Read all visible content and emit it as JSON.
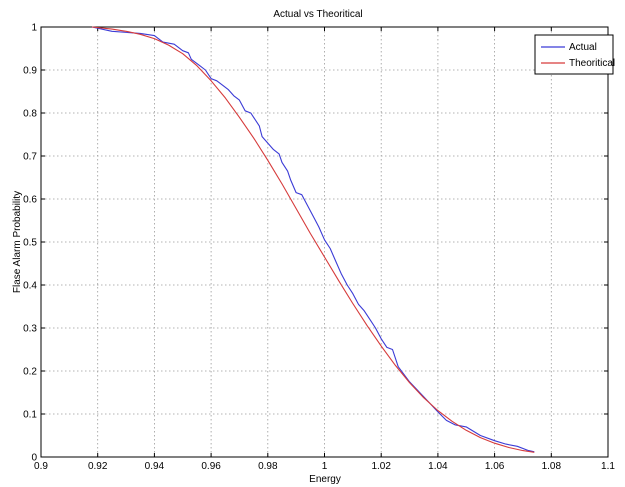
{
  "chart_data": {
    "type": "line",
    "title": "Actual vs Theoritical",
    "xlabel": "Energy",
    "ylabel": "Flase Alarm Probability",
    "xlim": [
      0.9,
      1.1
    ],
    "ylim": [
      0,
      1
    ],
    "xticks": [
      "0.9",
      "0.92",
      "0.94",
      "0.96",
      "0.98",
      "1",
      "1.02",
      "1.04",
      "1.06",
      "1.08",
      "1.1"
    ],
    "yticks": [
      "0",
      "0.1",
      "0.2",
      "0.3",
      "0.4",
      "0.5",
      "0.6",
      "0.7",
      "0.8",
      "0.9",
      "1"
    ],
    "grid": true,
    "legend": "top-right",
    "series": [
      {
        "name": "Actual",
        "color": "#3b3bd6",
        "x": [
          0.918,
          0.925,
          0.935,
          0.94,
          0.943,
          0.947,
          0.95,
          0.952,
          0.953,
          0.956,
          0.958,
          0.96,
          0.962,
          0.964,
          0.966,
          0.968,
          0.97,
          0.972,
          0.974,
          0.975,
          0.977,
          0.978,
          0.98,
          0.982,
          0.984,
          0.985,
          0.987,
          0.988,
          0.99,
          0.992,
          0.994,
          0.996,
          0.998,
          1.0,
          1.002,
          1.004,
          1.006,
          1.008,
          1.01,
          1.012,
          1.014,
          1.016,
          1.018,
          1.02,
          1.022,
          1.024,
          1.026,
          1.03,
          1.035,
          1.04,
          1.043,
          1.046,
          1.05,
          1.055,
          1.06,
          1.064,
          1.068,
          1.072,
          1.074
        ],
        "y": [
          1.0,
          0.99,
          0.985,
          0.98,
          0.965,
          0.96,
          0.945,
          0.94,
          0.925,
          0.91,
          0.9,
          0.88,
          0.875,
          0.865,
          0.855,
          0.84,
          0.83,
          0.805,
          0.8,
          0.79,
          0.77,
          0.745,
          0.73,
          0.715,
          0.705,
          0.685,
          0.665,
          0.645,
          0.615,
          0.61,
          0.585,
          0.56,
          0.535,
          0.505,
          0.485,
          0.455,
          0.425,
          0.4,
          0.38,
          0.355,
          0.34,
          0.32,
          0.3,
          0.275,
          0.255,
          0.25,
          0.21,
          0.175,
          0.14,
          0.105,
          0.085,
          0.075,
          0.07,
          0.05,
          0.038,
          0.03,
          0.025,
          0.015,
          0.012
        ]
      },
      {
        "name": "Theoritical",
        "color": "#d63b3b",
        "x": [
          0.918,
          0.925,
          0.93,
          0.935,
          0.94,
          0.945,
          0.95,
          0.955,
          0.96,
          0.965,
          0.97,
          0.975,
          0.98,
          0.985,
          0.99,
          0.995,
          1.0,
          1.005,
          1.01,
          1.015,
          1.02,
          1.025,
          1.03,
          1.035,
          1.04,
          1.045,
          1.05,
          1.055,
          1.06,
          1.065,
          1.07,
          1.074
        ],
        "y": [
          1.0,
          0.995,
          0.99,
          0.983,
          0.973,
          0.958,
          0.938,
          0.91,
          0.875,
          0.835,
          0.79,
          0.742,
          0.69,
          0.635,
          0.578,
          0.52,
          0.465,
          0.41,
          0.357,
          0.306,
          0.258,
          0.213,
          0.173,
          0.138,
          0.108,
          0.083,
          0.062,
          0.045,
          0.032,
          0.022,
          0.015,
          0.011
        ]
      }
    ]
  }
}
